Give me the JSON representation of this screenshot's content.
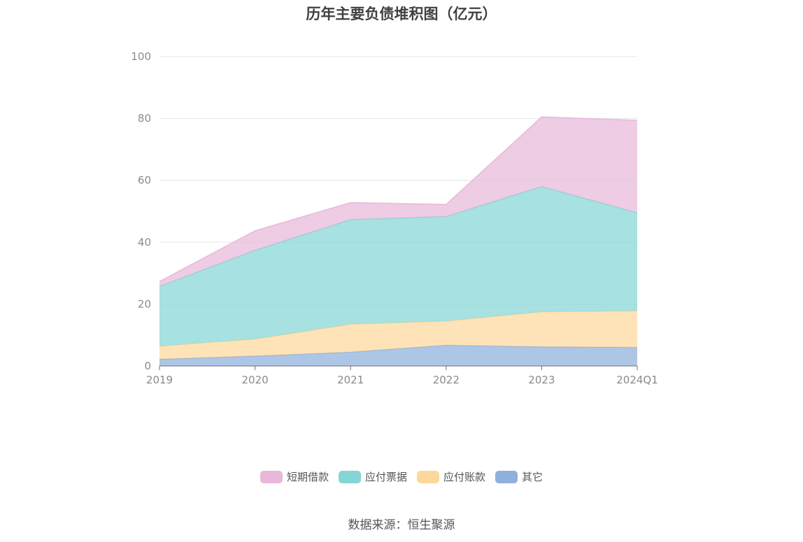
{
  "chart_data": {
    "type": "area",
    "stacked": true,
    "title": "历年主要负债堆积图（亿元）",
    "categories": [
      "2019",
      "2020",
      "2021",
      "2022",
      "2023",
      "2024Q1"
    ],
    "yticks": [
      "0",
      "20",
      "40",
      "60",
      "80",
      "100"
    ],
    "ylim": [
      0,
      100
    ],
    "grid": true,
    "legend_position": "bottom",
    "series": [
      {
        "name": "其它",
        "color": "#8fb0dc",
        "values": [
          2.2,
          3.2,
          4.5,
          6.7,
          6.2,
          6.0
        ]
      },
      {
        "name": "应付账款",
        "color": "#fdd89c",
        "values": [
          4.2,
          5.5,
          9.0,
          7.8,
          11.3,
          11.8
        ]
      },
      {
        "name": "应付票据",
        "color": "#86d5d6",
        "values": [
          19.3,
          28.7,
          33.8,
          33.8,
          40.5,
          31.7
        ]
      },
      {
        "name": "短期借款",
        "color": "#e8b8d9",
        "values": [
          1.6,
          6.3,
          5.5,
          3.9,
          22.5,
          29.9
        ]
      }
    ],
    "legend_order": [
      3,
      2,
      1,
      0
    ]
  },
  "source": "数据来源：恒生聚源"
}
